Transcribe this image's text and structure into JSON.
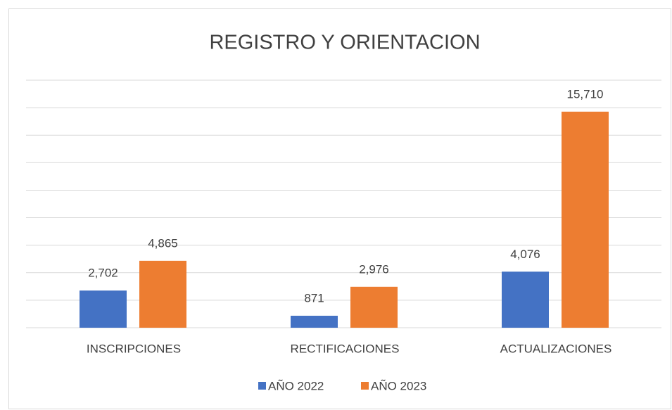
{
  "chart_data": {
    "type": "bar",
    "title": "REGISTRO Y ORIENTACION",
    "categories": [
      "INSCRIPCIONES",
      "RECTIFICACIONES",
      "ACTUALIZACIONES"
    ],
    "series": [
      {
        "name": "AÑO 2022",
        "color": "#4472c4",
        "values": [
          2702,
          871,
          4076
        ],
        "value_labels": [
          "2,702",
          "871",
          "4,076"
        ]
      },
      {
        "name": "AÑO 2023",
        "color": "#ed7d31",
        "values": [
          4865,
          2976,
          15710
        ],
        "value_labels": [
          "4,865",
          "2,976",
          "15,710"
        ]
      }
    ],
    "ylim": [
      0,
      18000
    ],
    "yticks": [
      0,
      2000,
      4000,
      6000,
      8000,
      10000,
      12000,
      14000,
      16000,
      18000
    ],
    "grid": true,
    "legend": "bottom"
  }
}
